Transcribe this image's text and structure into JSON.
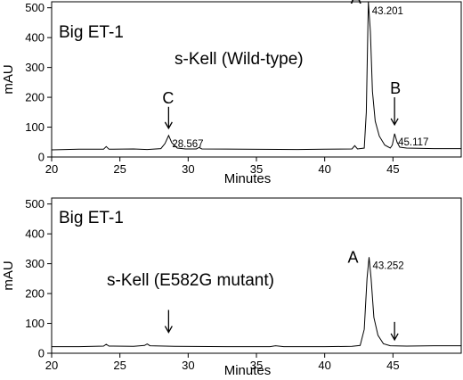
{
  "chart_data": [
    {
      "type": "line",
      "title": "",
      "panel_label": "Big ET-1",
      "subtitle": "s-Kell (Wild-type)",
      "xlabel": "Minutes",
      "ylabel": "mAU",
      "xlim": [
        20,
        50
      ],
      "ylim": [
        0,
        520
      ],
      "xticks": [
        20,
        25,
        30,
        35,
        40,
        45
      ],
      "yticks": [
        0,
        100,
        200,
        300,
        400,
        500
      ],
      "grid": false,
      "baseline": 25,
      "trace": [
        [
          20,
          24
        ],
        [
          22,
          26
        ],
        [
          23.8,
          26
        ],
        [
          24.0,
          35
        ],
        [
          24.2,
          26
        ],
        [
          26,
          27
        ],
        [
          27,
          25
        ],
        [
          28.0,
          28
        ],
        [
          28.3,
          45
        ],
        [
          28.57,
          72
        ],
        [
          28.8,
          48
        ],
        [
          29.2,
          30
        ],
        [
          29.8,
          27
        ],
        [
          30.6,
          27
        ],
        [
          30.8,
          32
        ],
        [
          31.0,
          27
        ],
        [
          34,
          26
        ],
        [
          38,
          25
        ],
        [
          40,
          26
        ],
        [
          42.0,
          27
        ],
        [
          42.2,
          38
        ],
        [
          42.4,
          27
        ],
        [
          42.9,
          30
        ],
        [
          43.05,
          150
        ],
        [
          43.2,
          522
        ],
        [
          43.35,
          420
        ],
        [
          43.5,
          220
        ],
        [
          43.7,
          120
        ],
        [
          44.0,
          70
        ],
        [
          44.4,
          40
        ],
        [
          44.8,
          30
        ],
        [
          44.95,
          40
        ],
        [
          45.12,
          78
        ],
        [
          45.3,
          50
        ],
        [
          45.5,
          33
        ],
        [
          46,
          30
        ],
        [
          48,
          28
        ],
        [
          50,
          28
        ]
      ],
      "peaks": [
        {
          "letter": "A",
          "rt": "43.201",
          "x": 43.201,
          "y": 522
        },
        {
          "letter": "B",
          "rt": "45.117",
          "x": 45.117,
          "y": 78
        },
        {
          "letter": "C",
          "rt": "28.567",
          "x": 28.567,
          "y": 72
        }
      ],
      "arrows": [
        {
          "peak": "B",
          "x": 45.117,
          "from_y": 200,
          "to_y": 108
        },
        {
          "peak": "C",
          "x": 28.567,
          "from_y": 168,
          "to_y": 96
        }
      ]
    },
    {
      "type": "line",
      "title": "",
      "panel_label": "Big ET-1",
      "subtitle": "s-Kell (E582G mutant)",
      "xlabel": "Minutes",
      "ylabel": "mAU",
      "xlim": [
        20,
        50
      ],
      "ylim": [
        0,
        520
      ],
      "xticks": [
        20,
        25,
        30,
        35,
        40,
        45
      ],
      "yticks": [
        0,
        100,
        200,
        300,
        400,
        500
      ],
      "grid": false,
      "baseline": 22,
      "trace": [
        [
          20,
          22
        ],
        [
          22,
          22
        ],
        [
          23.8,
          24
        ],
        [
          24.0,
          30
        ],
        [
          24.2,
          24
        ],
        [
          26,
          23
        ],
        [
          26.8,
          26
        ],
        [
          27.0,
          31
        ],
        [
          27.2,
          25
        ],
        [
          29,
          23
        ],
        [
          33,
          22
        ],
        [
          36,
          22
        ],
        [
          36.4,
          25
        ],
        [
          37,
          22
        ],
        [
          40,
          22
        ],
        [
          42.0,
          23
        ],
        [
          42.6,
          26
        ],
        [
          42.9,
          80
        ],
        [
          43.1,
          250
        ],
        [
          43.25,
          322
        ],
        [
          43.4,
          250
        ],
        [
          43.6,
          120
        ],
        [
          43.9,
          60
        ],
        [
          44.3,
          32
        ],
        [
          44.8,
          25
        ],
        [
          46,
          24
        ],
        [
          48,
          25
        ],
        [
          50,
          25
        ]
      ],
      "peaks": [
        {
          "letter": "A",
          "rt": "43.252",
          "x": 43.252,
          "y": 322
        }
      ],
      "arrows": [
        {
          "peak": "",
          "x": 28.567,
          "from_y": 145,
          "to_y": 70
        },
        {
          "peak": "",
          "x": 45.117,
          "from_y": 105,
          "to_y": 45
        }
      ]
    }
  ]
}
